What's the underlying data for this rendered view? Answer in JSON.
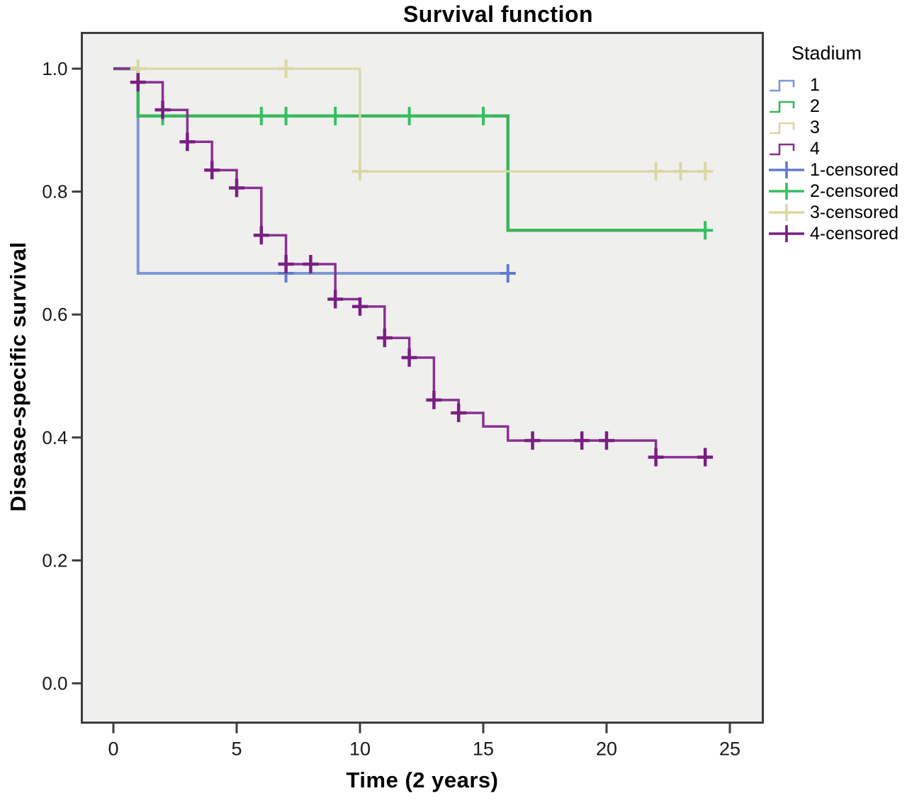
{
  "chart_data": {
    "type": "line",
    "subtype": "kaplan-meier-step-survival",
    "title": "Survival function",
    "xlabel": "Time (2 years)",
    "ylabel": "Disease-specific survival",
    "legend_title": "Stadium",
    "xlim": [
      0,
      25
    ],
    "ylim": [
      0.0,
      1.0
    ],
    "grid": false,
    "legend_position": "right-top",
    "x_ticks": [
      0,
      5,
      10,
      15,
      20,
      25
    ],
    "x_tick_labels": [
      "0",
      "5",
      "10",
      "15",
      "20",
      "25"
    ],
    "y_ticks": [
      1.0,
      0.8,
      0.6,
      0.4,
      0.2,
      0.0
    ],
    "y_tick_labels": [
      "1.0",
      "0.8",
      "0.6",
      "0.4",
      "0.2",
      "0.0"
    ],
    "colors": {
      "plot_background": "#EFEFEE",
      "panel_border": "#3C3C3C",
      "tick_text": "#1A1A1A",
      "title_text": "#000000",
      "stadium_1": "#7E96D4",
      "stadium_2": "#3CB55C",
      "stadium_3": "#DCD6A2",
      "stadium_4": "#8A3191"
    },
    "series": [
      {
        "name": "1",
        "color": "#7E96D4",
        "censor_color": "#5F7CCB",
        "points": [
          [
            0,
            1.0
          ],
          [
            1,
            1.0
          ],
          [
            1,
            0.667
          ],
          [
            16,
            0.667
          ]
        ],
        "censored": [
          [
            7,
            0.667
          ],
          [
            16,
            0.667
          ]
        ]
      },
      {
        "name": "2",
        "color": "#3CB55C",
        "censor_color": "#35BF5F",
        "points": [
          [
            0,
            1.0
          ],
          [
            1,
            1.0
          ],
          [
            1,
            0.923
          ],
          [
            16,
            0.923
          ],
          [
            16,
            0.737
          ],
          [
            24,
            0.737
          ]
        ],
        "censored": [
          [
            2,
            0.923
          ],
          [
            6,
            0.923
          ],
          [
            7,
            0.923
          ],
          [
            9,
            0.923
          ],
          [
            12,
            0.923
          ],
          [
            15,
            0.923
          ],
          [
            24,
            0.737
          ]
        ]
      },
      {
        "name": "3",
        "color": "#DCD6A2",
        "censor_color": "#DCD6A2",
        "points": [
          [
            0,
            1.0
          ],
          [
            10,
            1.0
          ],
          [
            10,
            0.833
          ],
          [
            24,
            0.833
          ]
        ],
        "censored": [
          [
            1,
            1.0
          ],
          [
            7,
            1.0
          ],
          [
            10,
            0.833
          ],
          [
            22,
            0.833
          ],
          [
            23,
            0.833
          ],
          [
            24,
            0.833
          ]
        ]
      },
      {
        "name": "4",
        "color": "#8A3191",
        "censor_color": "#7A1E82",
        "points": [
          [
            0,
            1.0
          ],
          [
            1,
            1.0
          ],
          [
            1,
            0.978
          ],
          [
            2,
            0.978
          ],
          [
            2,
            0.933
          ],
          [
            3,
            0.933
          ],
          [
            3,
            0.881
          ],
          [
            4,
            0.881
          ],
          [
            4,
            0.835
          ],
          [
            5,
            0.835
          ],
          [
            5,
            0.806
          ],
          [
            6,
            0.806
          ],
          [
            6,
            0.729
          ],
          [
            7,
            0.729
          ],
          [
            7,
            0.682
          ],
          [
            9,
            0.682
          ],
          [
            9,
            0.625
          ],
          [
            10,
            0.625
          ],
          [
            10,
            0.613
          ],
          [
            11,
            0.613
          ],
          [
            11,
            0.562
          ],
          [
            12,
            0.562
          ],
          [
            12,
            0.53
          ],
          [
            13,
            0.53
          ],
          [
            13,
            0.461
          ],
          [
            14,
            0.461
          ],
          [
            14,
            0.44
          ],
          [
            15,
            0.44
          ],
          [
            15,
            0.418
          ],
          [
            16,
            0.418
          ],
          [
            16,
            0.395
          ],
          [
            22,
            0.395
          ],
          [
            22,
            0.368
          ],
          [
            24,
            0.368
          ]
        ],
        "censored": [
          [
            1,
            0.978
          ],
          [
            2,
            0.933
          ],
          [
            3,
            0.881
          ],
          [
            4,
            0.835
          ],
          [
            5,
            0.806
          ],
          [
            6,
            0.729
          ],
          [
            7,
            0.682
          ],
          [
            8,
            0.682
          ],
          [
            9,
            0.625
          ],
          [
            10,
            0.613
          ],
          [
            11,
            0.562
          ],
          [
            12,
            0.53
          ],
          [
            13,
            0.461
          ],
          [
            14,
            0.44
          ],
          [
            17,
            0.395
          ],
          [
            19,
            0.395
          ],
          [
            20,
            0.395
          ],
          [
            22,
            0.368
          ],
          [
            24,
            0.368
          ]
        ]
      }
    ],
    "legend": [
      {
        "label": "1",
        "type": "step",
        "color": "#7E96D4"
      },
      {
        "label": "2",
        "type": "step",
        "color": "#3CB55C"
      },
      {
        "label": "3",
        "type": "step",
        "color": "#DCD6A2"
      },
      {
        "label": "4",
        "type": "step",
        "color": "#8A3191"
      },
      {
        "label": "1-censored",
        "type": "plus",
        "color": "#5F7CCB"
      },
      {
        "label": "2-censored",
        "type": "plus",
        "color": "#35BF5F"
      },
      {
        "label": "3-censored",
        "type": "plus",
        "color": "#DCD6A2"
      },
      {
        "label": "4-censored",
        "type": "plus",
        "color": "#7A1E82"
      }
    ]
  }
}
